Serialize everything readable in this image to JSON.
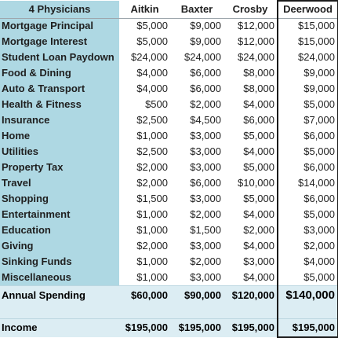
{
  "header": {
    "corner": "4 Physicians",
    "columns": [
      "Aitkin",
      "Baxter",
      "Crosby",
      "Deerwood"
    ]
  },
  "rows": [
    {
      "label": "Mortgage Principal",
      "values": [
        "$5,000",
        "$9,000",
        "$12,000",
        "$15,000"
      ]
    },
    {
      "label": "Mortgage Interest",
      "values": [
        "$5,000",
        "$9,000",
        "$12,000",
        "$15,000"
      ]
    },
    {
      "label": "Student Loan Paydown",
      "values": [
        "$24,000",
        "$24,000",
        "$24,000",
        "$24,000"
      ]
    },
    {
      "label": "Food & Dining",
      "values": [
        "$4,000",
        "$6,000",
        "$8,000",
        "$9,000"
      ]
    },
    {
      "label": "Auto & Transport",
      "values": [
        "$4,000",
        "$6,000",
        "$8,000",
        "$9,000"
      ]
    },
    {
      "label": "Health & Fitness",
      "values": [
        "$500",
        "$2,000",
        "$4,000",
        "$5,000"
      ]
    },
    {
      "label": "Insurance",
      "values": [
        "$2,500",
        "$4,500",
        "$6,000",
        "$7,000"
      ]
    },
    {
      "label": "Home",
      "values": [
        "$1,000",
        "$3,000",
        "$5,000",
        "$6,000"
      ]
    },
    {
      "label": "Utilities",
      "values": [
        "$2,500",
        "$3,000",
        "$4,000",
        "$5,000"
      ]
    },
    {
      "label": "Property Tax",
      "values": [
        "$2,000",
        "$3,000",
        "$5,000",
        "$6,000"
      ]
    },
    {
      "label": "Travel",
      "values": [
        "$2,000",
        "$6,000",
        "$10,000",
        "$14,000"
      ]
    },
    {
      "label": "Shopping",
      "values": [
        "$1,500",
        "$3,000",
        "$5,000",
        "$6,000"
      ]
    },
    {
      "label": "Entertainment",
      "values": [
        "$1,000",
        "$2,000",
        "$4,000",
        "$5,000"
      ]
    },
    {
      "label": "Education",
      "values": [
        "$1,000",
        "$1,500",
        "$2,000",
        "$3,000"
      ]
    },
    {
      "label": "Giving",
      "values": [
        "$2,000",
        "$3,000",
        "$4,000",
        "$2,000"
      ]
    },
    {
      "label": "Sinking Funds",
      "values": [
        "$1,000",
        "$2,000",
        "$3,000",
        "$4,000"
      ]
    },
    {
      "label": "Miscellaneous",
      "values": [
        "$1,000",
        "$3,000",
        "$4,000",
        "$5,000"
      ]
    }
  ],
  "total": {
    "label": "Annual Spending",
    "values": [
      "$60,000",
      "$90,000",
      "$120,000",
      "$140,000"
    ]
  },
  "income": {
    "label": "Income",
    "values": [
      "$195,000",
      "$195,000",
      "$195,000",
      "$195,000"
    ]
  },
  "colors": {
    "label_bg": "#aed8e3",
    "total_bg": "#dcedf3",
    "highlight_border": "#1a1a1a"
  }
}
